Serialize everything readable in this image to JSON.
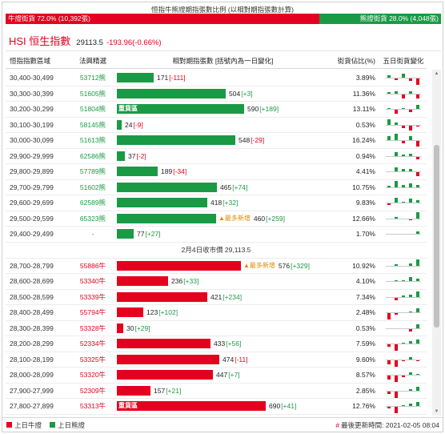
{
  "ratio": {
    "title": "恒指牛熊證期指張數比例 (以相對期指張數計算)",
    "bull_label": "牛證街貨 72.0% (10,392張)",
    "bear_label": "熊證街貨 28.0% (4,048張)",
    "bull_pct": 72.0,
    "bear_pct": 28.0
  },
  "index": {
    "name": "HSI 恒生指數",
    "value": "29113.5",
    "change": "-193.96(-0.66%)"
  },
  "header": {
    "range": "恒指指數區域",
    "code": "法興精選",
    "bar": "相對期指張數 [括號內為一日變化]",
    "pct": "街貨佔比(%)",
    "spark": "五日街貨變化"
  },
  "heavy_label": "重貨區",
  "new_label": "▲最多新增",
  "scale_max": 690,
  "rows": [
    {
      "type": "bear",
      "range": "30,400-30,499",
      "code": "53712熊",
      "count": 171,
      "count_text": "171",
      "delta": "[-111]",
      "pct": "3.89%",
      "spark": [
        2,
        -1,
        3,
        -2,
        -5
      ]
    },
    {
      "type": "bear",
      "range": "30,300-30,399",
      "code": "51605熊",
      "count": 504,
      "count_text": "504",
      "delta": "[+3]",
      "pct": "11.36%",
      "spark": [
        1,
        2,
        -3,
        2,
        -3
      ]
    },
    {
      "type": "bear",
      "range": "30,200-30,299",
      "code": "51804熊",
      "count": 590,
      "count_text": "590",
      "delta": "[+189]",
      "pct": "13.11%",
      "heavy": true,
      "spark": [
        1,
        -3,
        1,
        -2,
        3
      ]
    },
    {
      "type": "bear",
      "range": "30,100-30,199",
      "code": "58145熊",
      "count": 24,
      "count_text": "24",
      "delta": "[-9]",
      "pct": "0.53%",
      "spark": [
        4,
        2,
        -2,
        -4,
        -1
      ]
    },
    {
      "type": "bear",
      "range": "30,000-30,099",
      "code": "51613熊",
      "count": 548,
      "count_text": "548",
      "delta": "[-29]",
      "pct": "16.24%",
      "spark": [
        3,
        5,
        -2,
        3,
        -4
      ]
    },
    {
      "type": "bear",
      "range": "29,900-29,999",
      "code": "62586熊",
      "count": 37,
      "count_text": "37",
      "delta": "[-2]",
      "pct": "0.94%",
      "spark": [
        0,
        3,
        1,
        2,
        -2
      ]
    },
    {
      "type": "bear",
      "range": "29,800-29,899",
      "code": "57789熊",
      "count": 189,
      "count_text": "189",
      "delta": "[-34]",
      "pct": "4.41%",
      "spark": [
        0,
        3,
        2,
        2,
        -3
      ]
    },
    {
      "type": "bear",
      "range": "29,700-29,799",
      "code": "51602熊",
      "count": 465,
      "count_text": "465",
      "delta": "[+74]",
      "pct": "10.75%",
      "spark": [
        1,
        5,
        2,
        3,
        2
      ]
    },
    {
      "type": "bear",
      "range": "29,600-29,699",
      "code": "62589熊",
      "count": 418,
      "count_text": "418",
      "delta": "[+32]",
      "pct": "9.83%",
      "spark": [
        -1,
        4,
        1,
        3,
        2
      ]
    },
    {
      "type": "bear",
      "range": "29,500-29,599",
      "code": "65323熊",
      "count": 460,
      "count_text": "460",
      "delta": "[+259]",
      "pct": "12.66%",
      "newest": true,
      "spark": [
        0,
        1,
        0,
        -1,
        5
      ]
    },
    {
      "type": "bear",
      "range": "29,400-29,499",
      "code": "-",
      "count": 77,
      "count_text": "77",
      "delta": "[+27]",
      "pct": "1.70%",
      "spark": [
        0,
        0,
        0,
        0,
        2
      ]
    },
    {
      "type": "mid",
      "label": "2月4日收市價 29,113.5"
    },
    {
      "type": "bull",
      "range": "28,700-28,799",
      "code": "55886牛",
      "count": 576,
      "count_text": "576",
      "delta": "[+329]",
      "pct": "10.92%",
      "newest": true,
      "spark": [
        0,
        1,
        0,
        2,
        5
      ]
    },
    {
      "type": "bull",
      "range": "28,600-28,699",
      "code": "53340牛",
      "count": 236,
      "count_text": "236",
      "delta": "[+33]",
      "pct": "4.10%",
      "spark": [
        0,
        1,
        1,
        3,
        2
      ]
    },
    {
      "type": "bull",
      "range": "28,500-28,599",
      "code": "53339牛",
      "count": 421,
      "count_text": "421",
      "delta": "[+234]",
      "pct": "7.34%",
      "spark": [
        0,
        -2,
        1,
        2,
        4
      ]
    },
    {
      "type": "bull",
      "range": "28,400-28,499",
      "code": "55794牛",
      "count": 123,
      "count_text": "123",
      "delta": "[+102]",
      "pct": "2.48%",
      "spark": [
        -5,
        -1,
        0,
        1,
        3
      ]
    },
    {
      "type": "bull",
      "range": "28,300-28,399",
      "code": "53328牛",
      "count": 30,
      "count_text": "30",
      "delta": "[+29]",
      "pct": "0.53%",
      "spark": [
        0,
        0,
        0,
        -2,
        3
      ]
    },
    {
      "type": "bull",
      "range": "28,200-28,299",
      "code": "52334牛",
      "count": 433,
      "count_text": "433",
      "delta": "[+56]",
      "pct": "7.59%",
      "spark": [
        -2,
        -5,
        1,
        2,
        3
      ]
    },
    {
      "type": "bull",
      "range": "28,100-28,199",
      "code": "53325牛",
      "count": 474,
      "count_text": "474",
      "delta": "[-11]",
      "pct": "9.60%",
      "spark": [
        -3,
        -5,
        -1,
        2,
        -1
      ]
    },
    {
      "type": "bull",
      "range": "28,000-28,099",
      "code": "53320牛",
      "count": 447,
      "count_text": "447",
      "delta": "[+7]",
      "pct": "8.57%",
      "spark": [
        -3,
        -5,
        -1,
        2,
        1
      ]
    },
    {
      "type": "bull",
      "range": "27,900-27,999",
      "code": "52309牛",
      "count": 157,
      "count_text": "157",
      "delta": "[+21]",
      "pct": "2.85%",
      "spark": [
        -2,
        -5,
        0,
        1,
        3
      ]
    },
    {
      "type": "bull",
      "range": "27,800-27,899",
      "code": "53313牛",
      "count": 690,
      "count_text": "690",
      "delta": "[+41]",
      "pct": "12.76%",
      "heavy": true,
      "spark": [
        -1,
        -5,
        1,
        2,
        3
      ]
    }
  ],
  "footer": {
    "legend_bull": "上日牛證",
    "legend_bear": "上日熊證",
    "update_mark": "#",
    "update_text": "最後更新時間: 2021-02-05 08:04"
  },
  "colors": {
    "bull": "#e4001f",
    "bear": "#1a9a44",
    "new_tag": "#e08a00"
  },
  "icons": {
    "scroll_up": "triangle-up-icon",
    "scroll_down": "triangle-down-icon"
  }
}
